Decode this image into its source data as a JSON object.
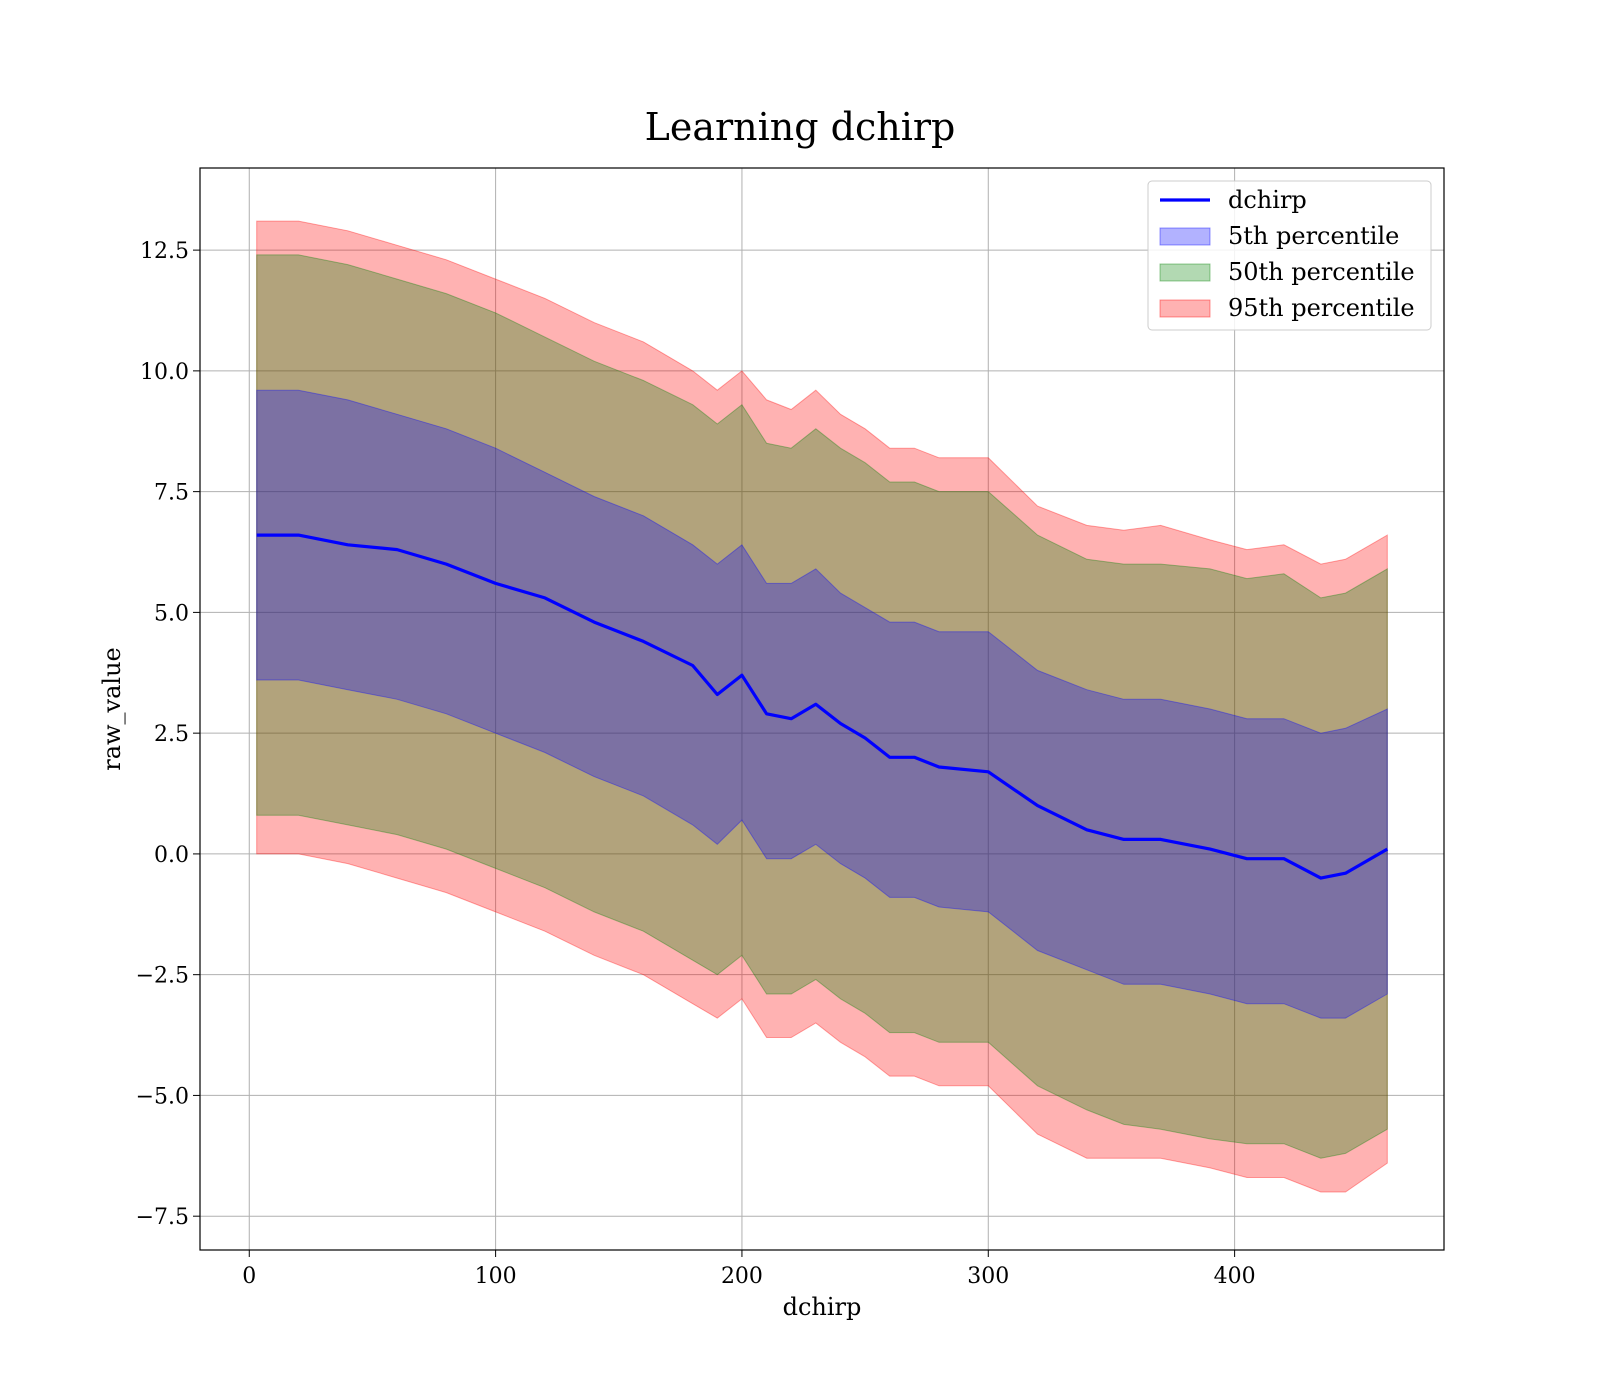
{
  "chart_data": {
    "type": "area",
    "title": "Learning dchirp",
    "xlabel": "dchirp",
    "ylabel": "raw_value",
    "xlim": [
      -20,
      485
    ],
    "ylim": [
      -8.2,
      14.2
    ],
    "xticks": [
      0,
      100,
      200,
      300,
      400
    ],
    "yticks": [
      -7.5,
      -5.0,
      -2.5,
      0.0,
      2.5,
      5.0,
      7.5,
      10.0,
      12.5
    ],
    "xtick_labels": [
      "0",
      "100",
      "200",
      "300",
      "400"
    ],
    "ytick_labels": [
      "−7.5",
      "−5.0",
      "−2.5",
      "0.0",
      "2.5",
      "5.0",
      "7.5",
      "10.0",
      "12.5"
    ],
    "grid": true,
    "legend_position": "top-right",
    "x": [
      3,
      20,
      40,
      60,
      80,
      100,
      120,
      140,
      160,
      180,
      190,
      200,
      210,
      220,
      230,
      240,
      250,
      260,
      270,
      280,
      300,
      320,
      340,
      355,
      370,
      390,
      405,
      420,
      435,
      445,
      462
    ],
    "line": {
      "name": "dchirp",
      "color": "#0000ff",
      "values": [
        6.6,
        6.6,
        6.4,
        6.3,
        6.0,
        5.6,
        5.3,
        4.8,
        4.4,
        3.9,
        3.3,
        3.7,
        2.9,
        2.8,
        3.1,
        2.7,
        2.4,
        2.0,
        2.0,
        1.8,
        1.7,
        1.0,
        0.5,
        0.3,
        0.3,
        0.1,
        -0.1,
        -0.1,
        -0.5,
        -0.4,
        0.1
      ]
    },
    "bands": [
      {
        "name": "95th percentile",
        "color": "#ff0000",
        "upper": [
          13.1,
          13.1,
          12.9,
          12.6,
          12.3,
          11.9,
          11.5,
          11.0,
          10.6,
          10.0,
          9.6,
          10.0,
          9.4,
          9.2,
          9.6,
          9.1,
          8.8,
          8.4,
          8.4,
          8.2,
          8.2,
          7.2,
          6.8,
          6.7,
          6.8,
          6.5,
          6.3,
          6.4,
          6.0,
          6.1,
          6.6
        ],
        "lower": [
          0.0,
          0.0,
          -0.2,
          -0.5,
          -0.8,
          -1.2,
          -1.6,
          -2.1,
          -2.5,
          -3.1,
          -3.4,
          -3.0,
          -3.8,
          -3.8,
          -3.5,
          -3.9,
          -4.2,
          -4.6,
          -4.6,
          -4.8,
          -4.8,
          -5.8,
          -6.3,
          -6.3,
          -6.3,
          -6.5,
          -6.7,
          -6.7,
          -7.0,
          -7.0,
          -6.4
        ]
      },
      {
        "name": "50th percentile",
        "color": "#008000",
        "upper": [
          12.4,
          12.4,
          12.2,
          11.9,
          11.6,
          11.2,
          10.7,
          10.2,
          9.8,
          9.3,
          8.9,
          9.3,
          8.5,
          8.4,
          8.8,
          8.4,
          8.1,
          7.7,
          7.7,
          7.5,
          7.5,
          6.6,
          6.1,
          6.0,
          6.0,
          5.9,
          5.7,
          5.8,
          5.3,
          5.4,
          5.9
        ],
        "lower": [
          0.8,
          0.8,
          0.6,
          0.4,
          0.1,
          -0.3,
          -0.7,
          -1.2,
          -1.6,
          -2.2,
          -2.5,
          -2.1,
          -2.9,
          -2.9,
          -2.6,
          -3.0,
          -3.3,
          -3.7,
          -3.7,
          -3.9,
          -3.9,
          -4.8,
          -5.3,
          -5.6,
          -5.7,
          -5.9,
          -6.0,
          -6.0,
          -6.3,
          -6.2,
          -5.7
        ]
      },
      {
        "name": "5th percentile",
        "color": "#0000ff",
        "upper": [
          9.6,
          9.6,
          9.4,
          9.1,
          8.8,
          8.4,
          7.9,
          7.4,
          7.0,
          6.4,
          6.0,
          6.4,
          5.6,
          5.6,
          5.9,
          5.4,
          5.1,
          4.8,
          4.8,
          4.6,
          4.6,
          3.8,
          3.4,
          3.2,
          3.2,
          3.0,
          2.8,
          2.8,
          2.5,
          2.6,
          3.0
        ],
        "lower": [
          3.6,
          3.6,
          3.4,
          3.2,
          2.9,
          2.5,
          2.1,
          1.6,
          1.2,
          0.6,
          0.2,
          0.7,
          -0.1,
          -0.1,
          0.2,
          -0.2,
          -0.5,
          -0.9,
          -0.9,
          -1.1,
          -1.2,
          -2.0,
          -2.4,
          -2.7,
          -2.7,
          -2.9,
          -3.1,
          -3.1,
          -3.4,
          -3.4,
          -2.9
        ]
      }
    ],
    "legend": [
      {
        "label": "dchirp",
        "kind": "line",
        "color": "#0000ff"
      },
      {
        "label": "5th percentile",
        "kind": "patch",
        "color": "#0000ff"
      },
      {
        "label": "50th percentile",
        "kind": "patch",
        "color": "#008000"
      },
      {
        "label": "95th percentile",
        "kind": "patch",
        "color": "#ff0000"
      }
    ]
  }
}
